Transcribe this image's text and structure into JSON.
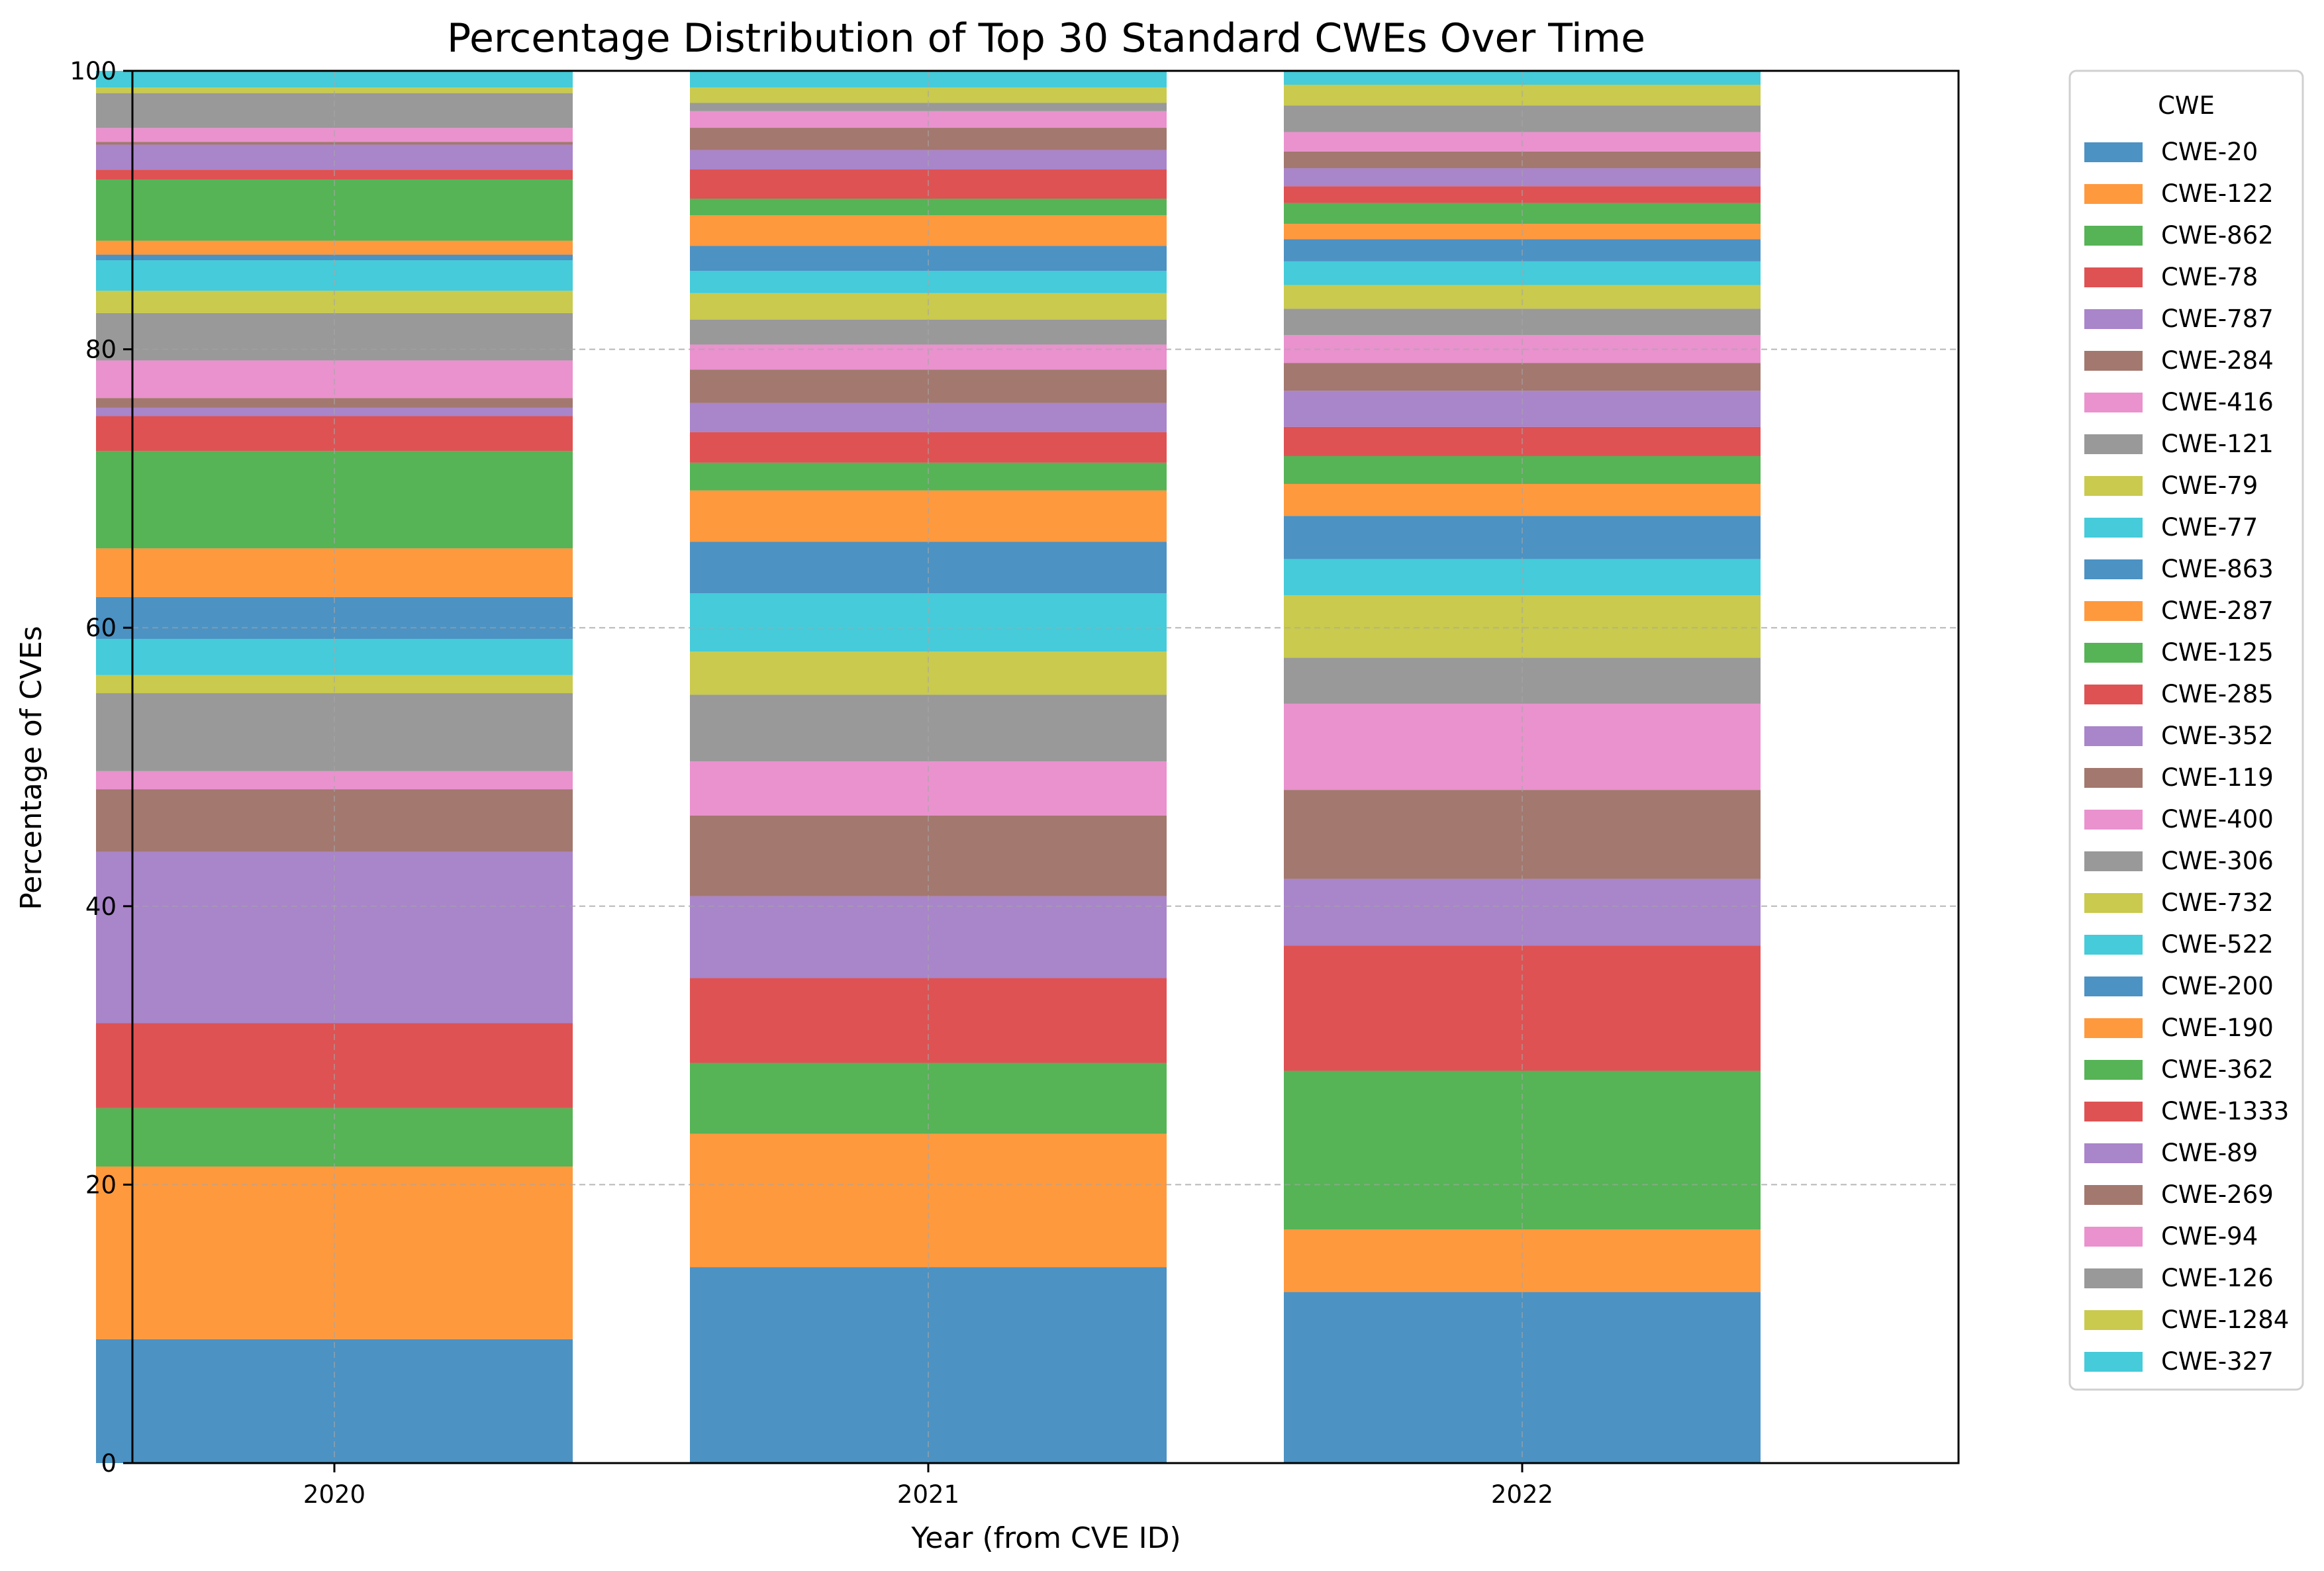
{
  "chart_data": {
    "type": "bar",
    "stacked": true,
    "title": "Percentage Distribution of Top 30 Standard CWEs Over Time",
    "xlabel": "Year (from CVE ID)",
    "ylabel": "Percentage of CVEs",
    "ylim": [
      0,
      100
    ],
    "yticks": [
      "0",
      "20",
      "40",
      "60",
      "80",
      "100"
    ],
    "grid": true,
    "legend_title": "CWE",
    "legend_position": "outside-right",
    "categories": [
      "2020",
      "2021",
      "2022"
    ],
    "series": [
      {
        "name": "CWE-20",
        "color": "#1f77b4",
        "values": [
          8.9,
          14.1,
          12.3
        ]
      },
      {
        "name": "CWE-122",
        "color": "#ff7f0e",
        "values": [
          12.4,
          9.6,
          4.5
        ]
      },
      {
        "name": "CWE-862",
        "color": "#2ca02c",
        "values": [
          4.2,
          5.1,
          11.4
        ]
      },
      {
        "name": "CWE-78",
        "color": "#d62728",
        "values": [
          6.1,
          6.1,
          9.0
        ]
      },
      {
        "name": "CWE-787",
        "color": "#9467bd",
        "values": [
          12.3,
          5.9,
          4.8
        ]
      },
      {
        "name": "CWE-284",
        "color": "#8c564b",
        "values": [
          4.5,
          5.8,
          6.4
        ]
      },
      {
        "name": "CWE-416",
        "color": "#e377c2",
        "values": [
          1.3,
          3.9,
          6.2
        ]
      },
      {
        "name": "CWE-121",
        "color": "#7f7f7f",
        "values": [
          5.6,
          4.8,
          3.3
        ]
      },
      {
        "name": "CWE-79",
        "color": "#bcbd22",
        "values": [
          1.3,
          3.1,
          4.5
        ]
      },
      {
        "name": "CWE-77",
        "color": "#17becf",
        "values": [
          2.6,
          4.2,
          2.6
        ]
      },
      {
        "name": "CWE-863",
        "color": "#1f77b4",
        "values": [
          3.0,
          3.7,
          3.1
        ]
      },
      {
        "name": "CWE-287",
        "color": "#ff7f0e",
        "values": [
          3.5,
          3.7,
          2.3
        ]
      },
      {
        "name": "CWE-125",
        "color": "#2ca02c",
        "values": [
          7.0,
          2.0,
          2.0
        ]
      },
      {
        "name": "CWE-285",
        "color": "#d62728",
        "values": [
          2.5,
          2.2,
          2.1
        ]
      },
      {
        "name": "CWE-352",
        "color": "#9467bd",
        "values": [
          0.6,
          2.1,
          2.6
        ]
      },
      {
        "name": "CWE-119",
        "color": "#8c564b",
        "values": [
          0.7,
          2.4,
          2.0
        ]
      },
      {
        "name": "CWE-400",
        "color": "#e377c2",
        "values": [
          2.7,
          1.8,
          2.0
        ]
      },
      {
        "name": "CWE-306",
        "color": "#7f7f7f",
        "values": [
          3.4,
          1.8,
          1.9
        ]
      },
      {
        "name": "CWE-732",
        "color": "#bcbd22",
        "values": [
          1.6,
          1.9,
          1.7
        ]
      },
      {
        "name": "CWE-522",
        "color": "#17becf",
        "values": [
          2.2,
          1.6,
          1.7
        ]
      },
      {
        "name": "CWE-200",
        "color": "#1f77b4",
        "values": [
          0.4,
          1.8,
          1.6
        ]
      },
      {
        "name": "CWE-190",
        "color": "#ff7f0e",
        "values": [
          1.0,
          2.2,
          1.1
        ]
      },
      {
        "name": "CWE-362",
        "color": "#2ca02c",
        "values": [
          4.4,
          1.2,
          1.5
        ]
      },
      {
        "name": "CWE-1333",
        "color": "#d62728",
        "values": [
          0.7,
          2.1,
          1.2
        ]
      },
      {
        "name": "CWE-89",
        "color": "#9467bd",
        "values": [
          1.8,
          1.4,
          1.3
        ]
      },
      {
        "name": "CWE-269",
        "color": "#8c564b",
        "values": [
          0.2,
          1.6,
          1.2
        ]
      },
      {
        "name": "CWE-94",
        "color": "#e377c2",
        "values": [
          1.0,
          1.2,
          1.4
        ]
      },
      {
        "name": "CWE-126",
        "color": "#7f7f7f",
        "values": [
          2.5,
          0.6,
          1.9
        ]
      },
      {
        "name": "CWE-1284",
        "color": "#bcbd22",
        "values": [
          0.4,
          1.1,
          1.5
        ]
      },
      {
        "name": "CWE-327",
        "color": "#17becf",
        "values": [
          1.2,
          1.2,
          1.0
        ]
      }
    ]
  }
}
